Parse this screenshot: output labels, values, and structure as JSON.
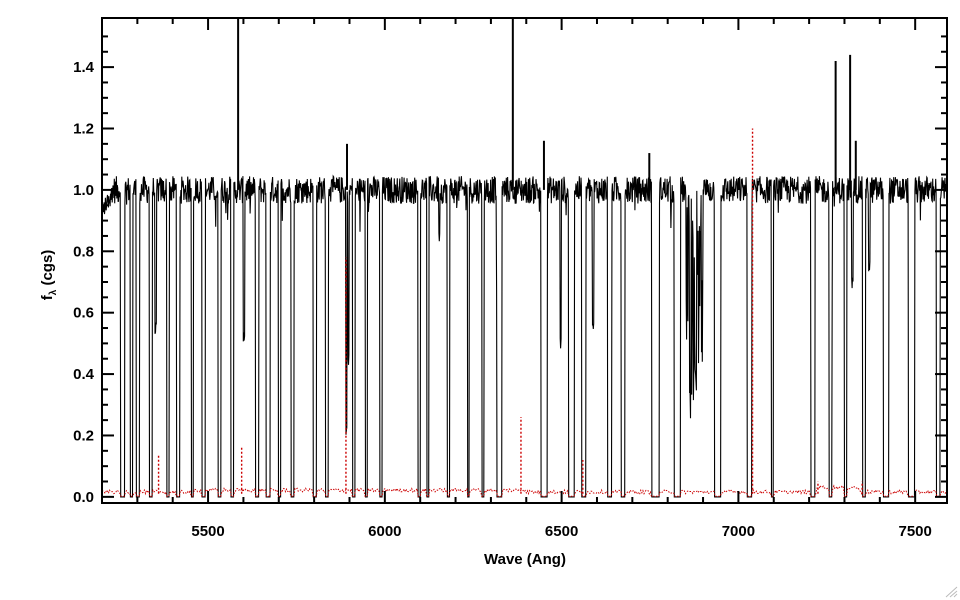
{
  "chart_data": {
    "type": "line",
    "title": "",
    "xlabel": "Wave (Ang)",
    "ylabel_main": "f",
    "ylabel_sub": "λ",
    "ylabel_tail": " (cgs)",
    "xlim": [
      5200,
      7590
    ],
    "ylim": [
      -0.02,
      1.56
    ],
    "xticks": [
      5500,
      6000,
      6500,
      7000,
      7500
    ],
    "xtick_labels": [
      "5500",
      "6000",
      "6500",
      "7000",
      "7500"
    ],
    "yticks": [
      0.0,
      0.2,
      0.4,
      0.6,
      0.8,
      1.0,
      1.2,
      1.4
    ],
    "ytick_labels": [
      "0.0",
      "0.2",
      "0.4",
      "0.6",
      "0.8",
      "1.0",
      "1.2",
      "1.4"
    ],
    "grid": false,
    "series": [
      {
        "color": "#000000",
        "style": "solid",
        "description_of_shape": "normalized flux near 1.0 with noise, many gaps dropping to 0",
        "continuum_level": 1.0,
        "gaps": [
          [
            5252,
            5264
          ],
          [
            5280,
            5287
          ],
          [
            5297,
            5306
          ],
          [
            5334,
            5342
          ],
          [
            5383,
            5390
          ],
          [
            5410,
            5420
          ],
          [
            5452,
            5459
          ],
          [
            5482,
            5492
          ],
          [
            5528,
            5537
          ],
          [
            5564,
            5573
          ],
          [
            5634,
            5643
          ],
          [
            5664,
            5676
          ],
          [
            5698,
            5706
          ],
          [
            5734,
            5743
          ],
          [
            5797,
            5806
          ],
          [
            5832,
            5840
          ],
          [
            5908,
            5916
          ],
          [
            5944,
            5951
          ],
          [
            5985,
            5993
          ],
          [
            6054,
            5994
          ],
          [
            6093,
            6101
          ],
          [
            6118,
            6124
          ],
          [
            6176,
            6183
          ],
          [
            6234,
            6239
          ],
          [
            6274,
            6281
          ],
          [
            6317,
            6331
          ],
          [
            6441,
            6459
          ],
          [
            6519,
            6536
          ],
          [
            6557,
            6568
          ],
          [
            6630,
            6642
          ],
          [
            6668,
            6679
          ],
          [
            6754,
            6776
          ],
          [
            6818,
            6836
          ],
          [
            6932,
            6950
          ],
          [
            7025,
            7038
          ],
          [
            7093,
            7099
          ],
          [
            7204,
            7216
          ],
          [
            7256,
            7264
          ],
          [
            7299,
            7307
          ],
          [
            7351,
            7359
          ],
          [
            7410,
            7425
          ],
          [
            7480,
            7499
          ],
          [
            7560,
            7570
          ]
        ],
        "spikes": [
          [
            5585,
            1.56
          ],
          [
            6362,
            1.56
          ],
          [
            5893,
            1.15
          ],
          [
            6450,
            1.16
          ],
          [
            7275,
            1.42
          ],
          [
            7316,
            1.44
          ],
          [
            7332,
            1.16
          ],
          [
            6748,
            1.12
          ]
        ],
        "absorption_dips": [
          [
            5340,
            0.78
          ],
          [
            5352,
            0.55
          ],
          [
            5387,
            0.88
          ],
          [
            5601,
            0.52
          ],
          [
            5891,
            0.22
          ],
          [
            5897,
            0.45
          ],
          [
            6154,
            0.85
          ],
          [
            6318,
            0.65
          ],
          [
            6497,
            0.5
          ],
          [
            6562,
            0.62
          ],
          [
            6589,
            0.55
          ],
          [
            6860,
            0.18
          ],
          [
            6868,
            0.2
          ],
          [
            6880,
            0.3
          ],
          [
            6892,
            0.25
          ],
          [
            7263,
            0.7
          ],
          [
            7322,
            0.7
          ],
          [
            7370,
            0.75
          ],
          [
            7490,
            0.4
          ]
        ]
      },
      {
        "color": "#cc0000",
        "style": "dotted",
        "description_of_shape": "error spectrum near 0.01-0.02",
        "baseline": 0.01,
        "spikes": [
          [
            5360,
            0.14
          ],
          [
            5595,
            0.16
          ],
          [
            5890,
            0.78
          ],
          [
            6385,
            0.26
          ],
          [
            6560,
            0.12
          ],
          [
            7040,
            1.2
          ],
          [
            7225,
            0.05
          ],
          [
            7350,
            0.05
          ]
        ]
      }
    ]
  }
}
